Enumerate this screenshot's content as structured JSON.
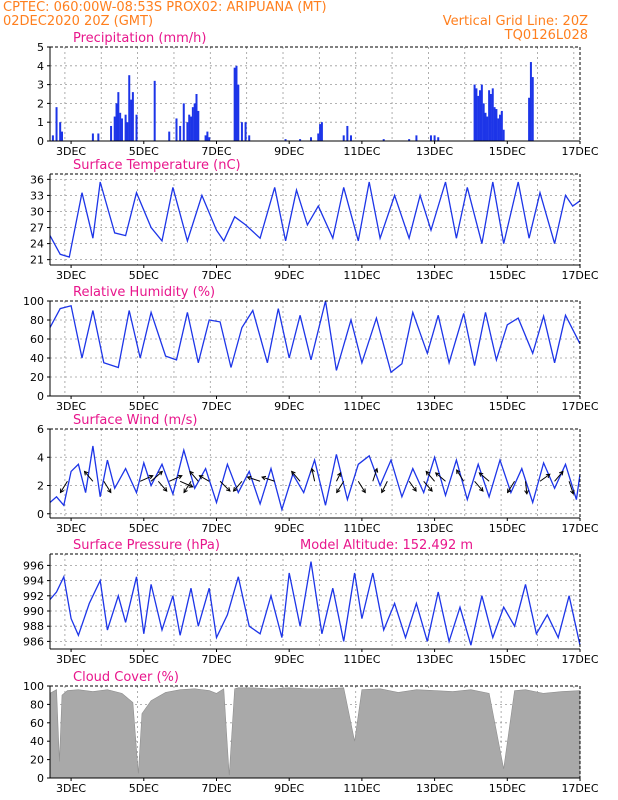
{
  "header": {
    "line1": "CPTEC:   060:00W-08:53S   PROX02: ARIPUANA (MT)",
    "line2": "02DEC2020 20Z (GMT)",
    "grid_note": "Vertical Grid Line: 20Z",
    "code": "TQ0126L028"
  },
  "colors": {
    "header": "#ff7f1e",
    "title": "#e8168c",
    "series": "#1d35e8",
    "cloud": "#a9a9a9",
    "grid": "#9a9a9a"
  },
  "x_ticks": [
    "3DEC",
    "5DEC",
    "7DEC",
    "9DEC",
    "11DEC",
    "13DEC",
    "15DEC",
    "17DEC"
  ],
  "x_tick_days": [
    3,
    5,
    7,
    9,
    11,
    13,
    15,
    17
  ],
  "x_range_days": [
    2.42,
    17.0
  ],
  "chart_data": [
    {
      "type": "bar",
      "title": "Precipitation (mm/h)",
      "ylim": [
        0,
        5
      ],
      "yticks": [
        0,
        1,
        2,
        3,
        4,
        5
      ],
      "x_days": [
        2.5,
        2.6,
        2.7,
        2.75,
        3.6,
        3.75,
        4.1,
        4.2,
        4.25,
        4.3,
        4.35,
        4.4,
        4.5,
        4.55,
        4.6,
        4.65,
        4.7,
        4.8,
        5.3,
        5.7,
        5.9,
        6.0,
        6.1,
        6.2,
        6.25,
        6.3,
        6.35,
        6.4,
        6.45,
        6.5,
        6.7,
        6.75,
        6.8,
        7.5,
        7.55,
        7.6,
        7.7,
        7.8,
        7.9,
        8.9,
        9.3,
        9.6,
        9.8,
        9.85,
        9.9,
        10.5,
        10.6,
        10.7,
        11.6,
        12.3,
        12.5,
        12.9,
        13.0,
        13.1,
        14.1,
        14.15,
        14.2,
        14.25,
        14.3,
        14.35,
        14.4,
        14.45,
        14.5,
        14.55,
        14.6,
        14.65,
        14.7,
        14.75,
        14.8,
        14.85,
        14.9,
        15.6,
        15.65,
        15.7
      ],
      "values": [
        0.3,
        1.8,
        1.0,
        0.5,
        0.4,
        0.4,
        0.8,
        1.3,
        2.0,
        2.6,
        1.5,
        1.2,
        1.4,
        1.0,
        3.5,
        2.2,
        2.6,
        1.4,
        3.2,
        0.5,
        1.2,
        0.8,
        2.0,
        1.0,
        1.4,
        1.3,
        1.8,
        2.0,
        2.5,
        1.6,
        0.3,
        0.5,
        0.2,
        3.9,
        4.0,
        3.0,
        1.0,
        1.0,
        0.3,
        0.1,
        0.1,
        0.2,
        0.4,
        0.9,
        1.0,
        0.3,
        0.8,
        0.3,
        0.1,
        0.1,
        0.3,
        0.3,
        0.3,
        0.2,
        3.0,
        2.8,
        2.4,
        2.7,
        3.0,
        2.0,
        1.5,
        1.3,
        2.7,
        2.5,
        2.8,
        1.8,
        1.7,
        1.2,
        1.4,
        1.6,
        0.6,
        2.3,
        4.2,
        3.4
      ]
    },
    {
      "type": "line",
      "title": "Surface Temperature (nC)",
      "ylim": [
        20,
        37
      ],
      "yticks": [
        21,
        24,
        27,
        30,
        33,
        36
      ],
      "x": [
        2.42,
        2.7,
        2.95,
        3.3,
        3.6,
        3.8,
        4.2,
        4.5,
        4.8,
        5.2,
        5.5,
        5.8,
        6.2,
        6.6,
        7.0,
        7.2,
        7.5,
        7.8,
        8.2,
        8.6,
        8.9,
        9.2,
        9.5,
        9.8,
        10.2,
        10.5,
        10.9,
        11.2,
        11.5,
        11.9,
        12.3,
        12.6,
        12.9,
        13.3,
        13.6,
        13.9,
        14.3,
        14.6,
        14.9,
        15.3,
        15.6,
        15.9,
        16.3,
        16.6,
        16.8,
        17.0
      ],
      "y": [
        25.5,
        22.0,
        21.5,
        33.5,
        25.0,
        35.5,
        26.0,
        25.5,
        33.5,
        27.0,
        24.5,
        34.5,
        24.5,
        33.0,
        26.5,
        24.5,
        29.0,
        27.5,
        25.0,
        34.5,
        24.5,
        34.0,
        27.5,
        31.0,
        25.0,
        34.5,
        24.5,
        35.5,
        25.0,
        33.0,
        25.0,
        33.0,
        26.5,
        35.5,
        25.0,
        34.5,
        24.0,
        35.5,
        24.0,
        35.5,
        25.0,
        33.5,
        24.0,
        33.0,
        31.0,
        32.0
      ]
    },
    {
      "type": "line",
      "title": "Relative Humidity (%)",
      "ylim": [
        0,
        100
      ],
      "yticks": [
        0,
        20,
        40,
        60,
        80,
        100
      ],
      "x": [
        2.42,
        2.7,
        3.0,
        3.3,
        3.6,
        3.9,
        4.3,
        4.6,
        4.9,
        5.2,
        5.6,
        5.9,
        6.2,
        6.5,
        6.8,
        7.1,
        7.4,
        7.7,
        8.0,
        8.4,
        8.7,
        9.0,
        9.3,
        9.6,
        10.0,
        10.3,
        10.7,
        11.0,
        11.4,
        11.8,
        12.1,
        12.4,
        12.8,
        13.1,
        13.4,
        13.8,
        14.1,
        14.4,
        14.7,
        15.0,
        15.3,
        15.7,
        16.0,
        16.3,
        16.6,
        17.0
      ],
      "y": [
        72,
        92,
        95,
        40,
        90,
        35,
        30,
        90,
        40,
        88,
        42,
        38,
        88,
        35,
        80,
        78,
        30,
        72,
        90,
        35,
        92,
        40,
        85,
        38,
        100,
        27,
        80,
        35,
        82,
        25,
        34,
        88,
        45,
        85,
        35,
        87,
        32,
        88,
        38,
        75,
        82,
        45,
        84,
        35,
        85,
        55
      ]
    },
    {
      "type": "line",
      "title": "Surface Wind (m/s)",
      "ylim": [
        -0.3,
        6
      ],
      "yticks": [
        0,
        2,
        4,
        6
      ],
      "x": [
        2.42,
        2.6,
        2.8,
        3.0,
        3.2,
        3.4,
        3.6,
        3.8,
        4.0,
        4.2,
        4.5,
        4.8,
        5.0,
        5.2,
        5.5,
        5.8,
        6.1,
        6.4,
        6.7,
        7.0,
        7.3,
        7.6,
        7.9,
        8.2,
        8.5,
        8.8,
        9.1,
        9.4,
        9.7,
        10.0,
        10.3,
        10.6,
        10.9,
        11.2,
        11.5,
        11.8,
        12.1,
        12.4,
        12.7,
        13.0,
        13.3,
        13.6,
        13.9,
        14.2,
        14.5,
        14.8,
        15.1,
        15.4,
        15.7,
        16.0,
        16.3,
        16.6,
        16.9,
        17.0
      ],
      "y": [
        0.8,
        1.2,
        0.6,
        3.0,
        3.5,
        1.5,
        4.8,
        1.2,
        3.8,
        1.8,
        3.2,
        1.5,
        3.6,
        2.0,
        3.5,
        1.4,
        4.5,
        1.8,
        3.2,
        0.8,
        3.5,
        1.5,
        3.0,
        0.7,
        3.2,
        0.3,
        2.8,
        1.5,
        3.8,
        0.6,
        4.2,
        1.0,
        3.5,
        4.1,
        2.0,
        3.8,
        1.2,
        3.2,
        1.5,
        4.0,
        1.3,
        3.8,
        1.0,
        3.5,
        1.2,
        3.8,
        1.5,
        3.2,
        0.8,
        3.6,
        1.8,
        3.5,
        1.0,
        2.8
      ],
      "arrows_x": [
        2.9,
        3.6,
        3.9,
        4.9,
        5.2,
        5.4,
        5.7,
        6.0,
        6.3,
        6.5,
        6.8,
        7.1,
        7.7,
        8.2,
        8.6,
        9.3,
        9.7,
        10.3,
        10.5,
        10.9,
        11.3,
        11.7,
        12.3,
        12.7,
        13.0,
        13.3,
        13.8,
        14.1,
        14.5,
        15.2,
        15.5,
        15.9,
        16.3,
        16.7
      ],
      "arrows_u": [
        -0.5,
        -0.6,
        0.5,
        0.9,
        0.8,
        0.6,
        0.9,
        0.9,
        -0.5,
        -0.6,
        -0.7,
        0.7,
        -0.6,
        -0.9,
        -0.9,
        -0.6,
        -0.2,
        0.3,
        -0.5,
        0.5,
        0.3,
        -0.4,
        0.5,
        0.6,
        -0.6,
        -0.7,
        -0.5,
        0.6,
        -0.7,
        -0.5,
        0.1,
        0.7,
        0.6,
        0.3
      ],
      "arrows_v": [
        -0.8,
        0.7,
        -0.8,
        0.4,
        0.7,
        -0.7,
        0.4,
        -0.4,
        -0.8,
        0.7,
        0.4,
        -0.7,
        -0.7,
        0.3,
        0.3,
        0.7,
        0.9,
        0.6,
        -0.8,
        -0.8,
        0.9,
        -0.8,
        -0.7,
        -0.7,
        0.7,
        0.6,
        0.8,
        -0.7,
        0.6,
        -0.8,
        -0.9,
        0.5,
        0.7,
        -0.9
      ]
    },
    {
      "type": "line",
      "title": "Surface Pressure (hPa)",
      "subtitle": "Model Altitude: 152.492 m",
      "ylim": [
        985,
        997.5
      ],
      "yticks": [
        986,
        988,
        990,
        992,
        994,
        996
      ],
      "x": [
        2.42,
        2.6,
        2.8,
        3.0,
        3.2,
        3.5,
        3.8,
        4.0,
        4.3,
        4.5,
        4.8,
        5.0,
        5.2,
        5.5,
        5.8,
        6.0,
        6.3,
        6.5,
        6.8,
        7.0,
        7.3,
        7.6,
        7.9,
        8.2,
        8.5,
        8.8,
        9.0,
        9.3,
        9.6,
        9.9,
        10.2,
        10.5,
        10.8,
        11.0,
        11.3,
        11.6,
        11.9,
        12.2,
        12.5,
        12.8,
        13.1,
        13.4,
        13.7,
        14.0,
        14.3,
        14.6,
        14.9,
        15.2,
        15.5,
        15.8,
        16.1,
        16.4,
        16.7,
        17.0
      ],
      "y": [
        991.5,
        992.5,
        994.5,
        989.0,
        986.8,
        991.0,
        994.0,
        987.5,
        992.0,
        988.5,
        994.5,
        987.0,
        993.5,
        987.5,
        992.0,
        986.8,
        993.0,
        988.0,
        993.0,
        986.5,
        989.5,
        994.5,
        988.0,
        987.0,
        992.0,
        986.5,
        995.0,
        988.0,
        996.5,
        987.0,
        993.0,
        986.0,
        995.0,
        989.0,
        995.0,
        987.5,
        991.0,
        986.5,
        991.0,
        986.0,
        992.5,
        986.0,
        990.5,
        985.5,
        992.0,
        986.5,
        990.5,
        988.0,
        993.5,
        987.0,
        989.5,
        986.5,
        992.0,
        985.5
      ]
    },
    {
      "type": "bar",
      "title": "Cloud Cover (%)",
      "ylim": [
        0,
        100
      ],
      "yticks": [
        0,
        20,
        40,
        60,
        80,
        100
      ],
      "x": [
        2.42,
        2.6,
        2.68,
        2.75,
        2.9,
        3.2,
        3.6,
        4.0,
        4.4,
        4.7,
        4.85,
        4.95,
        5.2,
        5.6,
        6.0,
        6.4,
        6.8,
        7.0,
        7.2,
        7.35,
        7.5,
        7.6,
        8.0,
        8.5,
        9.0,
        9.5,
        10.0,
        10.5,
        10.8,
        11.0,
        11.5,
        12.0,
        12.5,
        13.0,
        13.5,
        14.0,
        14.5,
        14.9,
        15.2,
        15.5,
        16.0,
        16.5,
        17.0
      ],
      "y": [
        92,
        96,
        18,
        90,
        95,
        96,
        94,
        96,
        92,
        82,
        5,
        70,
        84,
        93,
        96,
        97,
        95,
        92,
        97,
        3,
        97,
        98,
        98,
        97,
        98,
        97,
        97,
        98,
        40,
        96,
        97,
        93,
        96,
        95,
        94,
        96,
        92,
        10,
        95,
        96,
        92,
        94,
        95
      ]
    }
  ]
}
